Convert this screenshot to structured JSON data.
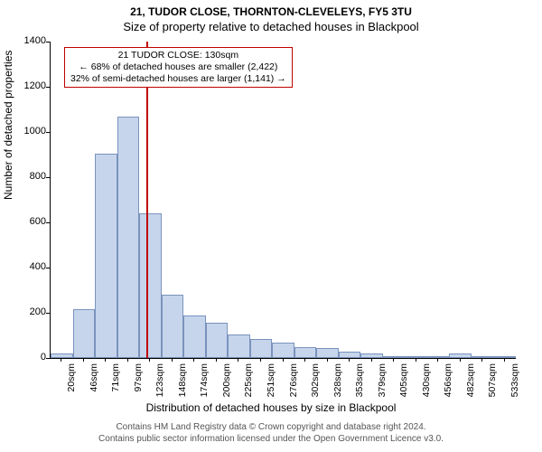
{
  "title_line1": "21, TUDOR CLOSE, THORNTON-CLEVELEYS, FY5 3TU",
  "title_line2": "Size of property relative to detached houses in Blackpool",
  "ylabel": "Number of detached properties",
  "xlabel": "Distribution of detached houses by size in Blackpool",
  "annotation": {
    "line1": "21 TUDOR CLOSE: 130sqm",
    "line2": "← 68% of detached houses are smaller (2,422)",
    "line3": "32% of semi-detached houses are larger (1,141) →"
  },
  "footer_line1": "Contains HM Land Registry data © Crown copyright and database right 2024.",
  "footer_line2": "Contains public sector information licensed under the Open Government Licence v3.0.",
  "chart": {
    "type": "histogram",
    "bar_fill": "#c6d5ec",
    "bar_stroke": "#7a93bd",
    "vline_color": "#c00000",
    "vline_at_sqm": 130,
    "background": "#ffffff",
    "ylim": [
      0,
      1400
    ],
    "ytick_step": 200,
    "x_start": 20,
    "x_step": 25.45,
    "x_labels": [
      "20sqm",
      "46sqm",
      "71sqm",
      "97sqm",
      "123sqm",
      "148sqm",
      "174sqm",
      "200sqm",
      "225sqm",
      "251sqm",
      "276sqm",
      "302sqm",
      "328sqm",
      "353sqm",
      "379sqm",
      "405sqm",
      "430sqm",
      "456sqm",
      "482sqm",
      "507sqm",
      "533sqm"
    ],
    "values": [
      20,
      215,
      905,
      1070,
      640,
      280,
      190,
      155,
      105,
      85,
      70,
      50,
      45,
      30,
      20,
      5,
      2,
      5,
      20,
      2,
      1
    ],
    "title_fontsize": 12,
    "axis_fontsize": 12,
    "tick_fontsize": 11
  },
  "yticks": [
    "0",
    "200",
    "400",
    "600",
    "800",
    "1000",
    "1200",
    "1400"
  ]
}
